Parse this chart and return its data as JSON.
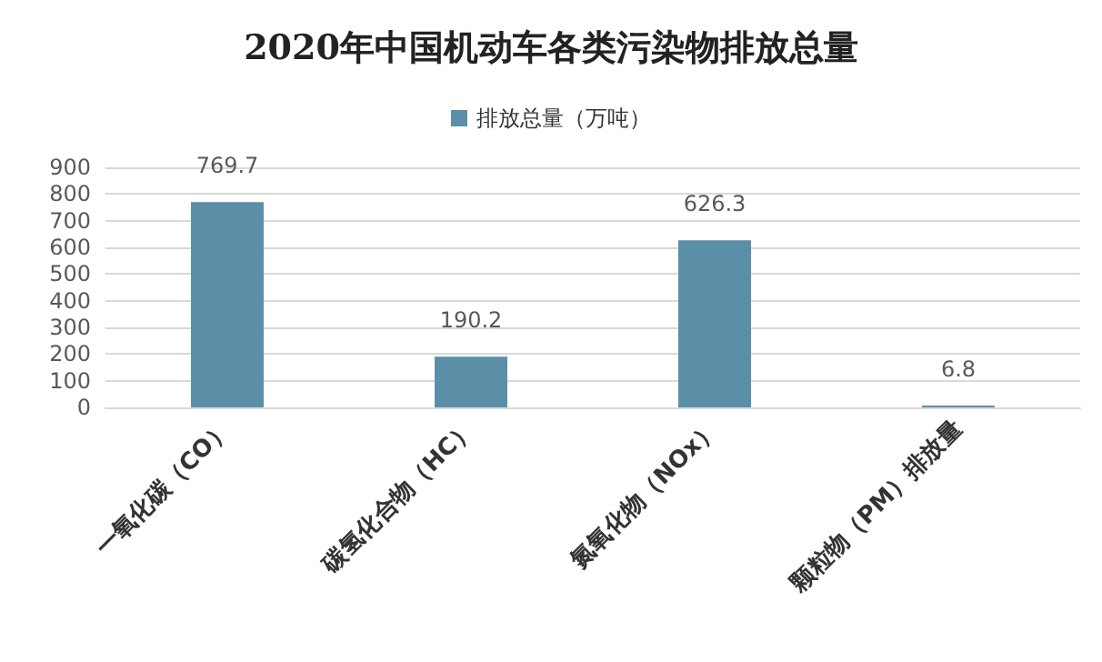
{
  "chart_data": {
    "type": "bar",
    "title": "2020年中国机动车各类污染物排放总量",
    "categories": [
      "一氧化碳（CO）",
      "碳氢化合物（HC）",
      "氮氧化物（NOx）",
      "颗粒物（PM）排放量"
    ],
    "series": [
      {
        "name": "排放总量（万吨）",
        "color": "#5b8fa8",
        "values": [
          769.7,
          190.2,
          626.3,
          6.8
        ]
      }
    ],
    "ylim": [
      0,
      900
    ],
    "yticks": [
      0,
      100,
      200,
      300,
      400,
      500,
      600,
      700,
      800,
      900
    ],
    "grid": "y",
    "legend": "top",
    "data_labels": true
  }
}
